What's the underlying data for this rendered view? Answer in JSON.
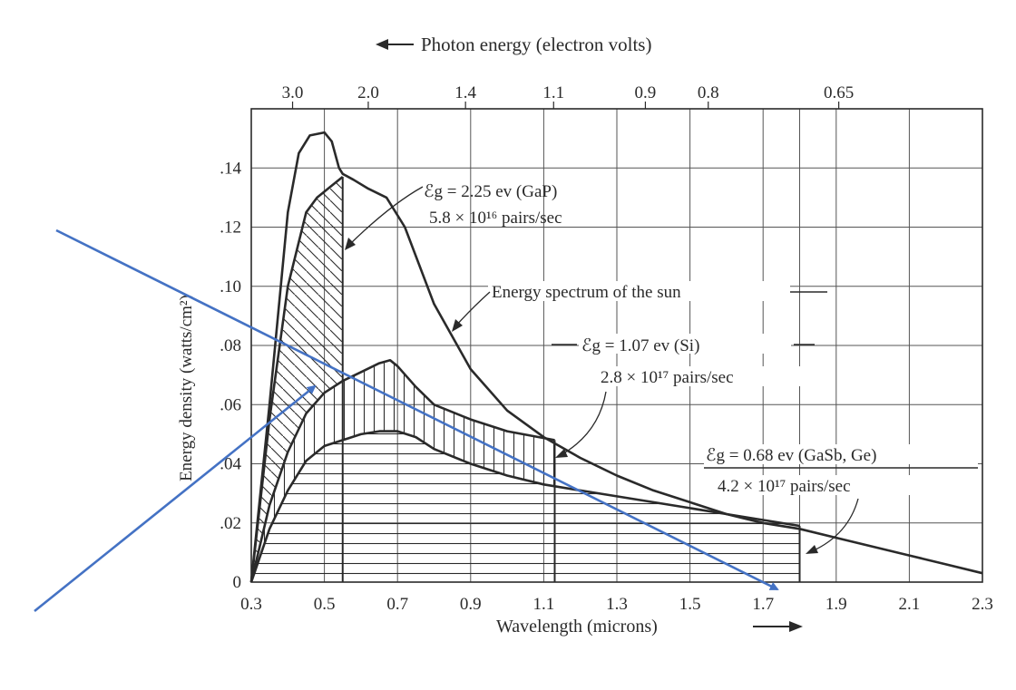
{
  "chart_data": {
    "type": "line",
    "xlabel": "Wavelength (microns)",
    "ylabel": "Energy density (watts/cm²)",
    "top_axis_label": "Photon energy (electron volts)",
    "xlim": [
      0.3,
      2.3
    ],
    "ylim": [
      0,
      0.16
    ],
    "x_ticks": [
      "0.3",
      "0.5",
      "0.7",
      "0.9",
      "1.1",
      "1.3",
      "1.5",
      "1.7",
      "1.9",
      "2.1",
      "2.3"
    ],
    "y_ticks": [
      {
        "label": "0",
        "value": 0
      },
      {
        "label": ".02",
        "value": 0.02
      },
      {
        "label": ".04",
        "value": 0.04
      },
      {
        "label": ".06",
        "value": 0.06
      },
      {
        "label": ".08",
        "value": 0.08
      },
      {
        "label": ".10",
        "value": 0.1
      },
      {
        "label": ".12",
        "value": 0.12
      },
      {
        "label": ".14",
        "value": 0.14
      }
    ],
    "top_ticks": [
      {
        "label": "3.0",
        "value": 0.413
      },
      {
        "label": "2.0",
        "value": 0.62
      },
      {
        "label": "1.4",
        "value": 0.886
      },
      {
        "label": "1.1",
        "value": 1.127
      },
      {
        "label": "0.9",
        "value": 1.378
      },
      {
        "label": "0.8",
        "value": 1.55
      },
      {
        "label": "0.65",
        "value": 1.907
      }
    ],
    "grid": true,
    "series": [
      {
        "name": "Energy spectrum of the sun",
        "x": [
          0.3,
          0.35,
          0.4,
          0.43,
          0.46,
          0.5,
          0.52,
          0.54,
          0.55,
          0.58,
          0.62,
          0.67,
          0.72,
          0.8,
          0.9,
          1.0,
          1.1,
          1.2,
          1.3,
          1.4,
          1.5,
          1.6,
          1.7,
          1.8,
          1.9,
          2.0,
          2.1,
          2.2,
          2.3
        ],
        "y": [
          0.0,
          0.06,
          0.125,
          0.145,
          0.151,
          0.152,
          0.149,
          0.14,
          0.138,
          0.136,
          0.133,
          0.13,
          0.12,
          0.094,
          0.072,
          0.058,
          0.049,
          0.042,
          0.036,
          0.031,
          0.027,
          0.023,
          0.02,
          0.018,
          0.015,
          0.012,
          0.009,
          0.006,
          0.003
        ]
      },
      {
        "x": [
          0.3,
          0.35,
          0.4,
          0.45,
          0.48,
          0.52,
          0.55
        ],
        "y": [
          0.0,
          0.055,
          0.1,
          0.125,
          0.13,
          0.134,
          0.137
        ]
      },
      {
        "x": [
          0.3,
          0.35,
          0.4,
          0.45,
          0.5,
          0.55,
          0.6,
          0.65,
          0.68,
          0.7,
          0.75,
          0.8,
          0.9,
          1.0,
          1.13
        ],
        "y": [
          0.0,
          0.026,
          0.044,
          0.057,
          0.064,
          0.068,
          0.071,
          0.074,
          0.075,
          0.073,
          0.066,
          0.06,
          0.055,
          0.051,
          0.048
        ]
      },
      {
        "x": [
          0.3,
          0.35,
          0.4,
          0.45,
          0.5,
          0.55,
          0.6,
          0.65,
          0.7,
          0.75,
          0.8,
          0.9,
          1.0,
          1.1,
          1.2,
          1.3,
          1.4,
          1.5,
          1.6,
          1.7,
          1.8
        ],
        "y": [
          0.0,
          0.018,
          0.031,
          0.041,
          0.046,
          0.048,
          0.05,
          0.051,
          0.051,
          0.049,
          0.045,
          0.04,
          0.036,
          0.033,
          0.031,
          0.029,
          0.027,
          0.025,
          0.023,
          0.021,
          0.019
        ]
      }
    ],
    "annotations": [
      {
        "lines": [
          "ℰg = 2.25 ev (GaP)",
          "5.8 × 10¹⁶ pairs/sec"
        ]
      },
      {
        "lines": [
          "Energy spectrum of the sun"
        ]
      },
      {
        "lines": [
          "ℰg = 1.07 ev (Si)",
          "2.8 × 10¹⁷ pairs/sec"
        ]
      },
      {
        "lines": [
          "ℰg = 0.68 ev (GaSb, Ge)",
          "4.2 × 10¹⁷ pairs/sec"
        ]
      }
    ]
  },
  "colors": {
    "ink": "#2a2a2a",
    "grid": "#555555",
    "arrows": "#4472c4"
  }
}
